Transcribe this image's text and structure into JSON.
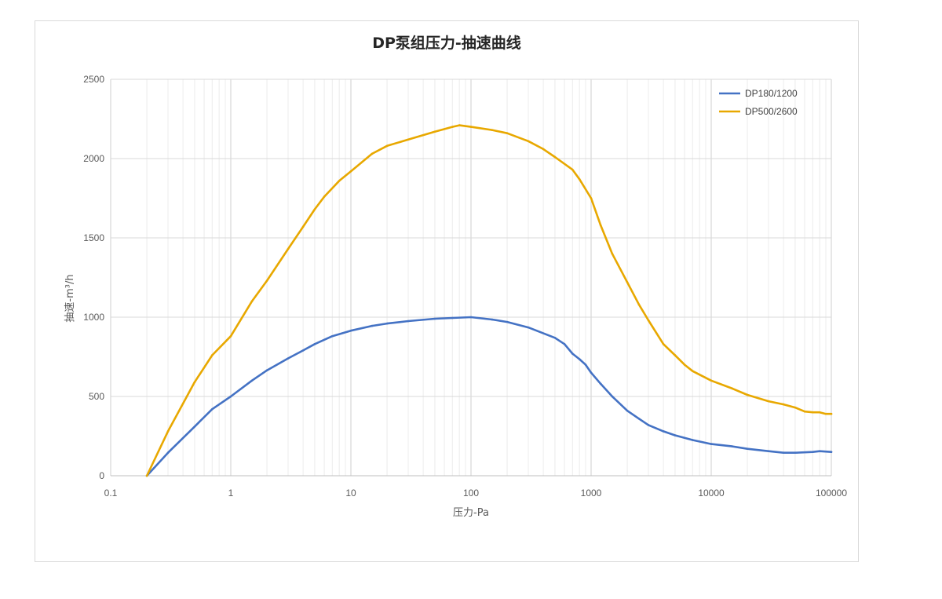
{
  "chart_data": {
    "type": "line",
    "title": "DP泵组压力-抽速曲线",
    "xlabel": "压力-Pa",
    "ylabel": "抽速-m³/h",
    "x_scale": "log",
    "xlim": [
      0.1,
      100000
    ],
    "ylim": [
      0,
      2500
    ],
    "x_ticks": [
      "0.1",
      "1",
      "10",
      "100",
      "1000",
      "10000",
      "100000"
    ],
    "y_ticks": [
      "0",
      "500",
      "1000",
      "1500",
      "2000",
      "2500"
    ],
    "grid": true,
    "legend_position": "top-right",
    "series": [
      {
        "name": "DP180/1200",
        "color": "#4472c4",
        "points": [
          [
            0.2,
            0
          ],
          [
            0.3,
            145
          ],
          [
            0.5,
            310
          ],
          [
            0.7,
            420
          ],
          [
            1,
            500
          ],
          [
            1.5,
            600
          ],
          [
            2,
            665
          ],
          [
            3,
            740
          ],
          [
            4,
            790
          ],
          [
            5,
            830
          ],
          [
            7,
            880
          ],
          [
            10,
            915
          ],
          [
            15,
            945
          ],
          [
            20,
            960
          ],
          [
            30,
            975
          ],
          [
            50,
            990
          ],
          [
            70,
            995
          ],
          [
            100,
            1000
          ],
          [
            150,
            985
          ],
          [
            200,
            970
          ],
          [
            300,
            935
          ],
          [
            500,
            870
          ],
          [
            600,
            830
          ],
          [
            700,
            770
          ],
          [
            800,
            735
          ],
          [
            900,
            700
          ],
          [
            1000,
            650
          ],
          [
            1200,
            580
          ],
          [
            1500,
            500
          ],
          [
            2000,
            410
          ],
          [
            2500,
            360
          ],
          [
            3000,
            320
          ],
          [
            4000,
            280
          ],
          [
            5000,
            255
          ],
          [
            7000,
            225
          ],
          [
            10000,
            200
          ],
          [
            15000,
            185
          ],
          [
            20000,
            170
          ],
          [
            30000,
            155
          ],
          [
            40000,
            145
          ],
          [
            50000,
            145
          ],
          [
            70000,
            150
          ],
          [
            80000,
            155
          ],
          [
            100000,
            150
          ]
        ]
      },
      {
        "name": "DP500/2600",
        "color": "#e8a800",
        "points": [
          [
            0.2,
            0
          ],
          [
            0.3,
            280
          ],
          [
            0.5,
            590
          ],
          [
            0.7,
            760
          ],
          [
            1,
            880
          ],
          [
            1.5,
            1100
          ],
          [
            2,
            1230
          ],
          [
            3,
            1430
          ],
          [
            4,
            1570
          ],
          [
            5,
            1680
          ],
          [
            6,
            1760
          ],
          [
            8,
            1860
          ],
          [
            10,
            1920
          ],
          [
            15,
            2030
          ],
          [
            20,
            2080
          ],
          [
            30,
            2120
          ],
          [
            50,
            2170
          ],
          [
            70,
            2200
          ],
          [
            80,
            2210
          ],
          [
            100,
            2200
          ],
          [
            150,
            2180
          ],
          [
            200,
            2160
          ],
          [
            300,
            2110
          ],
          [
            400,
            2060
          ],
          [
            500,
            2010
          ],
          [
            700,
            1930
          ],
          [
            800,
            1870
          ],
          [
            1000,
            1750
          ],
          [
            1200,
            1580
          ],
          [
            1500,
            1400
          ],
          [
            2000,
            1220
          ],
          [
            2500,
            1080
          ],
          [
            3000,
            980
          ],
          [
            4000,
            830
          ],
          [
            5000,
            760
          ],
          [
            6000,
            700
          ],
          [
            7000,
            660
          ],
          [
            10000,
            600
          ],
          [
            15000,
            550
          ],
          [
            20000,
            510
          ],
          [
            30000,
            470
          ],
          [
            40000,
            450
          ],
          [
            50000,
            430
          ],
          [
            60000,
            405
          ],
          [
            70000,
            400
          ],
          [
            80000,
            400
          ],
          [
            90000,
            390
          ],
          [
            100000,
            390
          ]
        ]
      }
    ]
  }
}
